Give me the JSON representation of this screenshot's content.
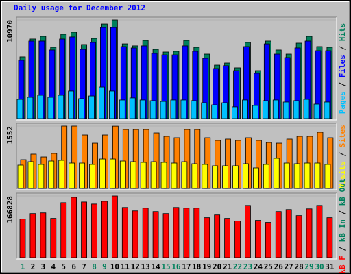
{
  "chart_data": [
    {
      "type": "bar",
      "title": "Daily usage for December 2012",
      "categories": [
        "1",
        "2",
        "3",
        "4",
        "5",
        "6",
        "7",
        "8",
        "9",
        "10",
        "11",
        "12",
        "13",
        "14",
        "15",
        "16",
        "17",
        "18",
        "19",
        "20",
        "21",
        "22",
        "23",
        "24",
        "25",
        "26",
        "27",
        "28",
        "29",
        "30",
        "31"
      ],
      "category_colors": [
        "#00805c",
        "#000000",
        "#000000",
        "#000000",
        "#000000",
        "#000000",
        "#000000",
        "#00805c",
        "#00805c",
        "#000000",
        "#000000",
        "#000000",
        "#000000",
        "#000000",
        "#00805c",
        "#00805c",
        "#000000",
        "#000000",
        "#000000",
        "#000000",
        "#000000",
        "#00805c",
        "#00805c",
        "#000000",
        "#000000",
        "#000000",
        "#000000",
        "#000000",
        "#00805c",
        "#00805c",
        "#000000"
      ],
      "legend_separator": " / ",
      "ylim": [
        0,
        10970
      ],
      "yticks": [
        10970
      ],
      "series": [
        {
          "name": "Pages",
          "color": "#00c0ff",
          "values": [
            2130,
            2360,
            2590,
            2360,
            2590,
            3050,
            2210,
            2510,
            3500,
            3050,
            2060,
            2290,
            2060,
            1980,
            1900,
            2060,
            2060,
            1980,
            1750,
            1520,
            1750,
            1300,
            2060,
            1450,
            1980,
            2060,
            1830,
            1980,
            2130,
            1600,
            1830
          ]
        },
        {
          "name": "Files",
          "color": "#0000ff",
          "values": [
            6480,
            8610,
            8610,
            7620,
            8840,
            9070,
            7690,
            8460,
            10130,
            10130,
            8000,
            7850,
            8080,
            7240,
            7080,
            7080,
            8080,
            7470,
            6700,
            5560,
            5870,
            5330,
            8000,
            5030,
            8300,
            7160,
            6780,
            7850,
            8610,
            7540,
            7540
          ]
        },
        {
          "name": "Hits",
          "color": "#00805c",
          "values": [
            6860,
            8840,
            9140,
            7920,
            9370,
            9600,
            8230,
            8910,
            10510,
            10970,
            8300,
            8080,
            8680,
            7690,
            7390,
            7470,
            8680,
            7920,
            7160,
            5940,
            6170,
            5640,
            8460,
            5330,
            8610,
            7620,
            7160,
            8380,
            9140,
            8000,
            7920
          ]
        }
      ]
    },
    {
      "type": "bar",
      "ylim": [
        0,
        1552
      ],
      "yticks": [
        1552
      ],
      "series": [
        {
          "name": "Visits",
          "color": "#ffff00",
          "values": [
            580,
            665,
            597,
            682,
            699,
            631,
            631,
            597,
            733,
            733,
            682,
            665,
            648,
            665,
            648,
            631,
            665,
            614,
            597,
            563,
            563,
            563,
            614,
            512,
            597,
            750,
            631,
            614,
            631,
            631,
            597
          ]
        },
        {
          "name": "Sites",
          "color": "#ff8000",
          "values": [
            716,
            853,
            784,
            870,
            1552,
            1552,
            1330,
            1125,
            1330,
            1550,
            1466,
            1466,
            1466,
            1381,
            1296,
            1262,
            1466,
            1466,
            1262,
            1194,
            1228,
            1194,
            1262,
            1194,
            1142,
            1125,
            1228,
            1296,
            1296,
            1398,
            1262
          ]
        }
      ]
    },
    {
      "type": "bar",
      "ylim": [
        0,
        166828
      ],
      "yticks": [
        166828
      ],
      "series": [
        {
          "name": "kB F",
          "color": "#ff0000",
          "values": [
            104500,
            119170,
            121000,
            106330,
            148500,
            163170,
            150330,
            144830,
            152170,
            166828,
            135670,
            126500,
            133830,
            124670,
            119170,
            135670,
            133830,
            133830,
            108170,
            115500,
            106330,
            99000,
            141170,
            100830,
            95330,
            124670,
            130170,
            113670,
            132000,
            141170,
            108170
          ]
        },
        {
          "name": "kB In",
          "color": "#00805c"
        },
        {
          "name": "kB Out",
          "color": "#00805c"
        }
      ]
    }
  ]
}
